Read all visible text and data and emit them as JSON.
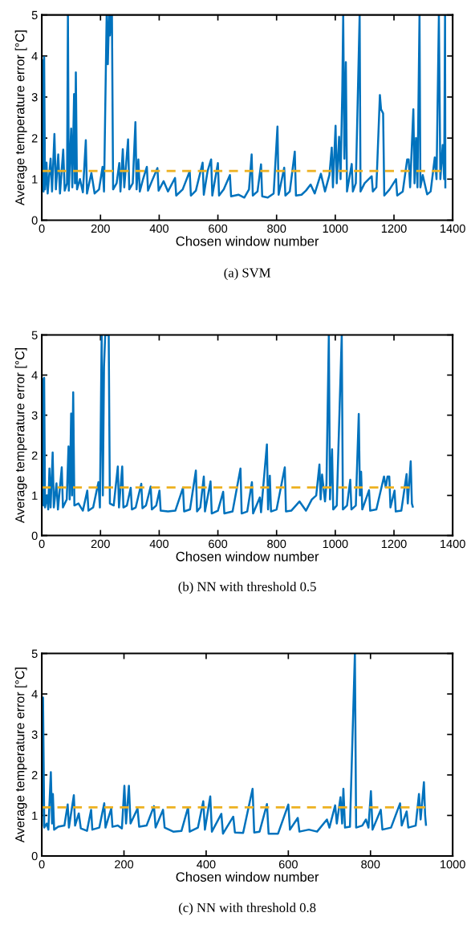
{
  "chart_data": [
    {
      "type": "line",
      "title": "(a) SVM",
      "xlabel": "Chosen window number",
      "ylabel": "Average temperature error [°C]",
      "xlim": [
        0,
        1400
      ],
      "xticks": [
        0,
        200,
        400,
        600,
        800,
        1000,
        1200,
        1400
      ],
      "ylim": [
        0,
        5
      ],
      "yticks": [
        0,
        1,
        2,
        3,
        4,
        5
      ],
      "ref_lines": [
        {
          "axis": "y",
          "value": 1.2,
          "color": "#edb120",
          "line_style": "dashed"
        }
      ],
      "x": [
        0,
        3,
        6,
        8,
        11,
        16,
        20,
        30,
        35,
        43,
        48,
        56,
        62,
        73,
        78,
        86,
        89,
        92,
        100,
        104,
        110,
        113,
        116,
        120,
        130,
        140,
        150,
        154,
        169,
        180,
        195,
        207,
        212,
        221,
        225,
        229,
        232,
        236,
        239,
        243,
        255,
        264,
        268,
        276,
        281,
        294,
        298,
        310,
        319,
        323,
        329,
        334,
        345,
        358,
        362,
        375,
        394,
        398,
        415,
        430,
        454,
        458,
        480,
        504,
        508,
        525,
        548,
        552,
        565,
        577,
        581,
        600,
        604,
        620,
        641,
        645,
        670,
        690,
        706,
        715,
        719,
        735,
        747,
        751,
        770,
        790,
        803,
        807,
        826,
        830,
        845,
        862,
        866,
        885,
        900,
        916,
        930,
        951,
        965,
        980,
        988,
        992,
        1001,
        1005,
        1013,
        1018,
        1024,
        1027,
        1031,
        1036,
        1040,
        1056,
        1060,
        1070,
        1083,
        1086,
        1100,
        1124,
        1128,
        1140,
        1152,
        1156,
        1163,
        1167,
        1185,
        1207,
        1211,
        1230,
        1245,
        1250,
        1255,
        1266,
        1270,
        1275,
        1280,
        1287,
        1290,
        1298,
        1313,
        1325,
        1339,
        1345,
        1353,
        1358,
        1366,
        1371,
        1374,
        1375
      ],
      "series": [
        {
          "color": "#0072bd",
          "values": [
            0.8,
            3.9,
            0.7,
            3.97,
            0.75,
            1.4,
            0.65,
            1.5,
            0.7,
            2.1,
            0.75,
            1.6,
            0.65,
            1.72,
            0.72,
            0.9,
            5,
            0.72,
            2.23,
            0.8,
            3.07,
            0.9,
            3.6,
            0.75,
            1.0,
            0.68,
            1.95,
            0.65,
            1.15,
            0.65,
            0.75,
            1.3,
            0.7,
            5,
            3.8,
            5,
            4.5,
            5,
            5,
            0.75,
            0.9,
            1.39,
            0.7,
            1.73,
            0.8,
            1.97,
            0.75,
            0.9,
            2.39,
            0.75,
            1.48,
            0.7,
            1.0,
            1.3,
            0.72,
            0.95,
            1.27,
            0.72,
            0.95,
            0.7,
            1.03,
            0.6,
            0.75,
            1.19,
            0.6,
            0.72,
            1.4,
            0.62,
            1.2,
            1.48,
            0.6,
            1.39,
            0.6,
            0.75,
            1.1,
            0.58,
            0.62,
            0.55,
            0.75,
            1.6,
            0.6,
            0.7,
            1.36,
            0.58,
            0.55,
            0.65,
            2.28,
            0.62,
            1.28,
            0.6,
            0.7,
            1.67,
            0.6,
            0.62,
            0.72,
            0.87,
            0.65,
            1.13,
            0.7,
            1.1,
            1.77,
            0.8,
            2.3,
            0.9,
            2.03,
            1.0,
            3.2,
            5,
            1.5,
            3.85,
            0.7,
            1.37,
            0.7,
            0.9,
            5,
            0.7,
            0.9,
            1.07,
            0.7,
            0.8,
            3.05,
            2.7,
            2.6,
            0.6,
            0.75,
            1.0,
            0.6,
            0.7,
            1.48,
            1.48,
            0.8,
            2.7,
            0.9,
            2.0,
            0.8,
            5,
            0.8,
            1.1,
            0.63,
            0.7,
            1.53,
            1.0,
            5,
            1.0,
            1.83,
            1.0,
            5,
            0.8
          ]
        }
      ]
    },
    {
      "type": "line",
      "title": "(b) NN with threshold 0.5",
      "xlabel": "Chosen window number",
      "ylabel": "Average temperature error [°C]",
      "xlim": [
        0,
        1400
      ],
      "xticks": [
        0,
        200,
        400,
        600,
        800,
        1000,
        1200,
        1400
      ],
      "ylim": [
        0,
        5
      ],
      "yticks": [
        0,
        1,
        2,
        3,
        4,
        5
      ],
      "ref_lines": [
        {
          "axis": "y",
          "value": 1.2,
          "color": "#edb120",
          "line_style": "dashed"
        }
      ],
      "x": [
        0,
        3,
        6,
        8,
        11,
        18,
        22,
        26,
        30,
        37,
        41,
        50,
        55,
        68,
        72,
        85,
        91,
        95,
        100,
        103,
        107,
        111,
        125,
        140,
        155,
        159,
        175,
        193,
        198,
        204,
        208,
        212,
        216,
        222,
        228,
        232,
        245,
        259,
        263,
        274,
        278,
        290,
        303,
        307,
        320,
        339,
        343,
        355,
        371,
        375,
        390,
        401,
        405,
        430,
        455,
        481,
        485,
        505,
        525,
        529,
        540,
        552,
        556,
        575,
        579,
        600,
        618,
        622,
        650,
        677,
        681,
        700,
        716,
        720,
        743,
        747,
        767,
        771,
        777,
        781,
        800,
        828,
        832,
        850,
        878,
        900,
        920,
        935,
        946,
        950,
        955,
        965,
        970,
        978,
        982,
        989,
        993,
        1005,
        1022,
        1026,
        1040,
        1051,
        1055,
        1070,
        1080,
        1084,
        1088,
        1092,
        1115,
        1119,
        1140,
        1166,
        1172,
        1178,
        1184,
        1188,
        1202,
        1206,
        1225,
        1243,
        1247,
        1257,
        1261,
        1264
      ],
      "series": [
        {
          "color": "#0072bd",
          "values": [
            0.8,
            3.9,
            0.75,
            3.93,
            0.7,
            1.0,
            0.65,
            1.67,
            0.7,
            2.07,
            0.7,
            1.3,
            0.65,
            1.7,
            0.7,
            0.9,
            2.22,
            0.9,
            3.04,
            1.0,
            3.57,
            0.75,
            0.8,
            0.62,
            1.12,
            0.62,
            0.7,
            1.33,
            0.7,
            5,
            1.0,
            4.2,
            5,
            5,
            5,
            0.8,
            0.75,
            1.72,
            0.7,
            1.72,
            0.7,
            0.75,
            1.19,
            0.65,
            0.7,
            1.29,
            0.68,
            0.75,
            1.22,
            0.65,
            0.75,
            1.12,
            0.62,
            0.6,
            0.62,
            1.19,
            0.6,
            0.65,
            1.62,
            0.6,
            0.7,
            1.47,
            0.6,
            1.35,
            0.55,
            0.62,
            1.09,
            0.55,
            0.6,
            1.67,
            0.55,
            0.6,
            1.33,
            0.55,
            0.95,
            0.58,
            2.27,
            0.65,
            1.49,
            0.6,
            0.65,
            1.7,
            0.6,
            0.62,
            0.85,
            0.62,
            0.9,
            1.0,
            1.77,
            0.9,
            1.52,
            0.85,
            1.3,
            5,
            0.9,
            2.15,
            0.65,
            0.75,
            5,
            0.65,
            0.75,
            1.39,
            0.65,
            0.75,
            3.03,
            1.0,
            1.59,
            0.65,
            1.13,
            0.62,
            0.65,
            1.47,
            1.2,
            1.47,
            1.47,
            0.7,
            1.12,
            0.6,
            0.62,
            1.53,
            0.8,
            1.85,
            0.8,
            0.72
          ]
        }
      ]
    },
    {
      "type": "line",
      "title": "(c) NN with threshold 0.8",
      "xlabel": "Chosen window number",
      "ylabel": "Average temperature error [°C]",
      "xlim": [
        0,
        1000
      ],
      "xticks": [
        0,
        200,
        400,
        600,
        800,
        1000
      ],
      "ylim": [
        0,
        5
      ],
      "yticks": [
        0,
        1,
        2,
        3,
        4,
        5
      ],
      "ref_lines": [
        {
          "axis": "y",
          "value": 1.2,
          "color": "#edb120",
          "line_style": "dashed"
        }
      ],
      "x": [
        0,
        3,
        6,
        12,
        16,
        22,
        25,
        27,
        30,
        40,
        55,
        63,
        66,
        78,
        81,
        90,
        95,
        110,
        120,
        123,
        140,
        152,
        155,
        169,
        172,
        185,
        195,
        201,
        205,
        212,
        216,
        233,
        237,
        255,
        273,
        277,
        295,
        299,
        320,
        340,
        356,
        360,
        380,
        393,
        397,
        410,
        414,
        437,
        441,
        466,
        470,
        490,
        513,
        517,
        530,
        548,
        552,
        575,
        600,
        604,
        623,
        627,
        650,
        670,
        694,
        700,
        714,
        718,
        727,
        731,
        734,
        738,
        750,
        762,
        765,
        780,
        789,
        795,
        801,
        805,
        825,
        829,
        850,
        872,
        876,
        888,
        892,
        910,
        918,
        922,
        930,
        933,
        935
      ],
      "series": [
        {
          "color": "#0072bd",
          "values": [
            0.75,
            3.91,
            0.7,
            0.8,
            0.65,
            2.07,
            0.8,
            1.53,
            0.65,
            0.72,
            0.75,
            1.27,
            0.7,
            1.5,
            0.75,
            1.05,
            0.68,
            0.62,
            1.14,
            0.65,
            0.7,
            1.3,
            0.7,
            1.17,
            0.72,
            0.75,
            0.68,
            1.73,
            0.8,
            1.73,
            0.8,
            1.17,
            0.72,
            0.75,
            1.23,
            0.7,
            1.14,
            0.7,
            0.6,
            0.62,
            1.2,
            0.6,
            0.7,
            1.35,
            0.65,
            1.47,
            0.6,
            1.04,
            0.55,
            0.97,
            0.58,
            0.57,
            1.66,
            0.58,
            0.6,
            1.28,
            0.55,
            0.55,
            1.27,
            0.65,
            0.94,
            0.6,
            0.65,
            0.6,
            0.9,
            0.7,
            1.25,
            0.8,
            1.45,
            0.8,
            1.66,
            0.7,
            0.72,
            5,
            0.7,
            0.75,
            0.9,
            0.7,
            1.6,
            0.65,
            1.14,
            0.65,
            0.7,
            1.3,
            0.75,
            1.1,
            0.7,
            0.75,
            1.53,
            0.9,
            1.82,
            1.0,
            0.77
          ]
        }
      ]
    }
  ]
}
